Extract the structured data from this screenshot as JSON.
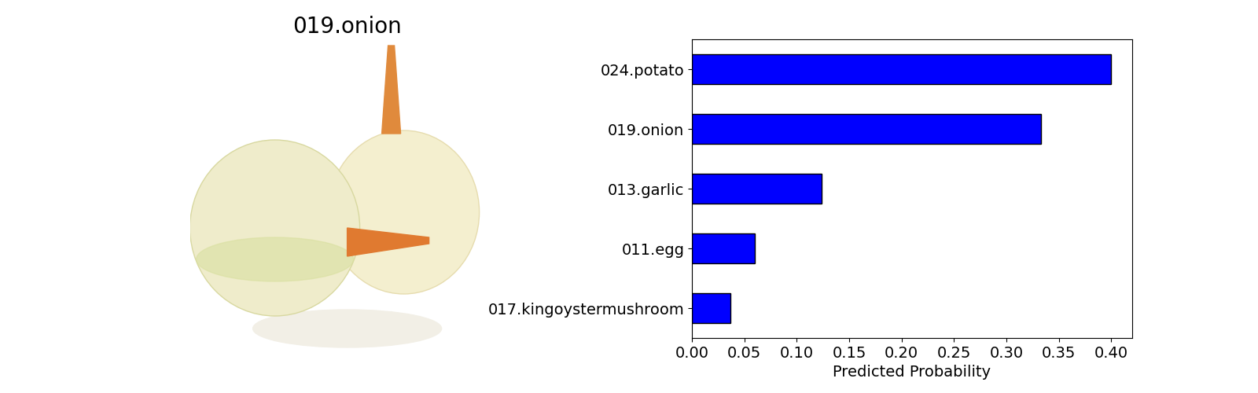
{
  "image": {
    "title": "019.onion"
  },
  "chart_data": {
    "type": "bar",
    "orientation": "horizontal",
    "categories": [
      "024.potato",
      "019.onion",
      "013.garlic",
      "011.egg",
      "017.kingoystermushroom"
    ],
    "values": [
      0.4,
      0.333,
      0.124,
      0.06,
      0.037
    ],
    "color": "#0000ff",
    "x_label": "Predicted Probability",
    "xlim": [
      0,
      0.42
    ],
    "xticks": [
      {
        "value": 0,
        "label": "0.00"
      },
      {
        "value": 0.05,
        "label": "0.05"
      },
      {
        "value": 0.1,
        "label": "0.10"
      },
      {
        "value": 0.15,
        "label": "0.15"
      },
      {
        "value": 0.2,
        "label": "0.20"
      },
      {
        "value": 0.25,
        "label": "0.25"
      },
      {
        "value": 0.3,
        "label": "0.30"
      },
      {
        "value": 0.35,
        "label": "0.35"
      },
      {
        "value": 0.4,
        "label": "0.40"
      }
    ],
    "grid": false
  }
}
